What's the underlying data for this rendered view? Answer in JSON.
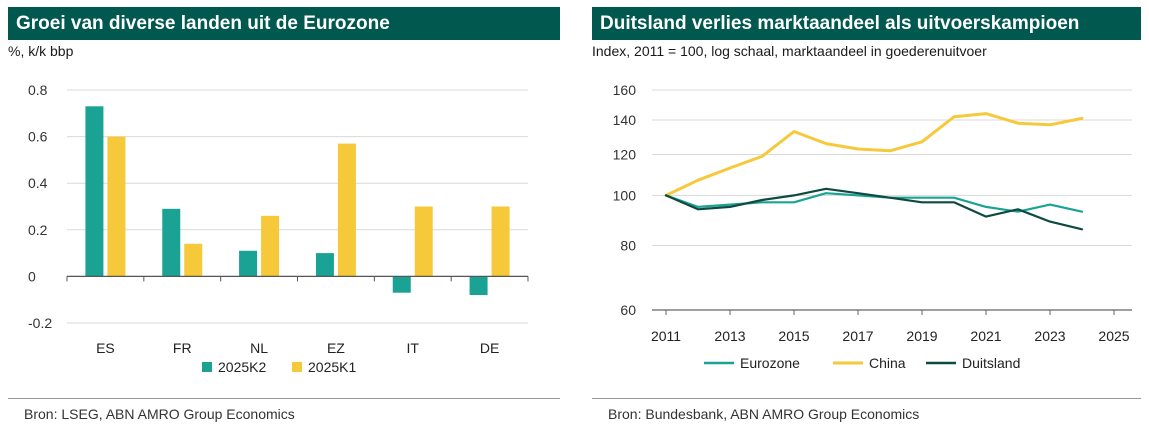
{
  "colors": {
    "header_bg": "#00584f",
    "teal": "#1aa394",
    "yellow": "#f6c93b",
    "dark_green": "#0f4a42",
    "grid": "#d9d9d9"
  },
  "left_panel": {
    "title": "Groei van diverse landen uit de Eurozone",
    "subtitle": "%, k/k bbp",
    "source": "Bron: LSEG, ABN AMRO Group Economics"
  },
  "right_panel": {
    "title": "Duitsland verlies marktaandeel als uitvoerskampioen",
    "subtitle": "Index, 2011 = 100, log schaal, marktaandeel in goederenuitvoer",
    "source": "Bron: Bundesbank, ABN AMRO Group Economics"
  },
  "chart_data": [
    {
      "type": "bar",
      "title": "Groei van diverse landen uit de Eurozone",
      "ylabel": "%, k/k bbp",
      "categories": [
        "ES",
        "FR",
        "NL",
        "EZ",
        "IT",
        "DE"
      ],
      "series": [
        {
          "name": "2025K2",
          "color": "#1aa394",
          "values": [
            0.73,
            0.29,
            0.11,
            0.1,
            -0.07,
            -0.08
          ]
        },
        {
          "name": "2025K1",
          "color": "#f6c93b",
          "values": [
            0.6,
            0.14,
            0.26,
            0.57,
            0.3,
            0.3
          ]
        }
      ],
      "ylim": [
        -0.2,
        0.8
      ],
      "yticks": [
        "-0.2",
        "0",
        "0.2",
        "0.4",
        "0.6",
        "0.8"
      ],
      "ytick_values": [
        -0.2,
        0,
        0.2,
        0.4,
        0.6,
        0.8
      ],
      "grid": true,
      "legend_position": "bottom"
    },
    {
      "type": "line",
      "title": "Duitsland verlies marktaandeel als uitvoerskampioen",
      "ylabel": "Index, 2011 = 100, log schaal, marktaandeel in goederenuitvoer",
      "log_scale": true,
      "x": [
        2011,
        2012,
        2013,
        2014,
        2015,
        2016,
        2017,
        2018,
        2019,
        2020,
        2021,
        2022,
        2023,
        2024
      ],
      "series": [
        {
          "name": "Eurozone",
          "color": "#1aa394",
          "values": [
            100,
            95,
            96,
            97,
            97,
            101,
            100,
            99,
            99,
            99,
            95,
            93,
            96,
            93
          ]
        },
        {
          "name": "China",
          "color": "#f6c93b",
          "values": [
            100,
            107,
            113,
            119,
            133,
            126,
            123,
            122,
            127,
            142,
            144,
            138,
            137,
            141
          ]
        },
        {
          "name": "Duitsland",
          "color": "#0f4a42",
          "values": [
            100,
            94,
            95,
            98,
            100,
            103,
            101,
            99,
            97,
            97,
            91,
            94,
            89,
            86
          ]
        }
      ],
      "xticks": [
        "2011",
        "2013",
        "2015",
        "2017",
        "2019",
        "2021",
        "2023",
        "2025"
      ],
      "xtick_values": [
        2011,
        2013,
        2015,
        2017,
        2019,
        2021,
        2023,
        2025
      ],
      "yticks": [
        "60",
        "80",
        "100",
        "120",
        "140",
        "160"
      ],
      "ytick_values": [
        60,
        80,
        100,
        120,
        140,
        160
      ],
      "xlim": [
        2011,
        2025
      ],
      "ylim": [
        60,
        160
      ],
      "grid": true,
      "legend_position": "bottom"
    }
  ]
}
